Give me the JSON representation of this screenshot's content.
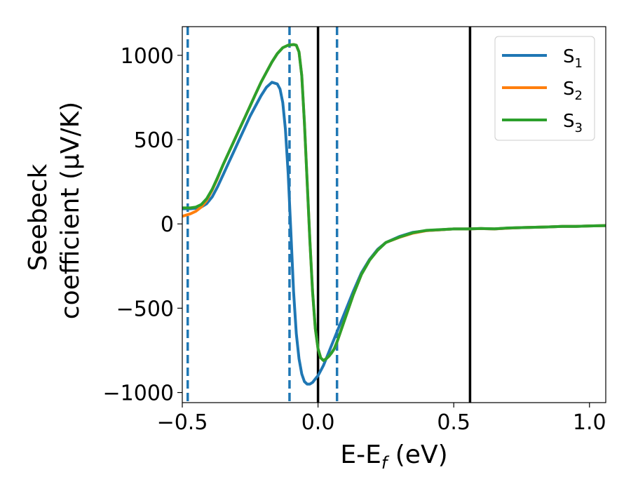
{
  "chart_data": {
    "type": "line",
    "title": "",
    "xlabel": "E-E",
    "xlabel_sub": "f",
    "xlabel_unit": " (eV)",
    "ylabel_line1": "Seebeck",
    "ylabel_line2": "coefficient  (μV/K)",
    "xlim": [
      -0.5,
      1.06
    ],
    "ylim": [
      -1060,
      1170
    ],
    "x_ticks": [
      -0.5,
      0.0,
      0.5,
      1.0
    ],
    "x_tick_labels": [
      "−0.5",
      "0.0",
      "0.5",
      "1.0"
    ],
    "y_ticks": [
      -1000,
      -500,
      0,
      500,
      1000
    ],
    "y_tick_labels": [
      "−1000",
      "−500",
      "0",
      "500",
      "1000"
    ],
    "legend_position": "top-right",
    "colors": {
      "S1": "#1f77b4",
      "S2": "#ff7f0e",
      "S3": "#2ca02c",
      "vline_solid": "#000000",
      "vline_dashed": "#1f77b4"
    },
    "vlines_solid": [
      0.0,
      0.56
    ],
    "vlines_dashed": [
      -0.48,
      -0.105,
      0.07
    ],
    "series": [
      {
        "name": "S",
        "sub": "1",
        "color_key": "S1",
        "x": [
          -0.5,
          -0.47,
          -0.45,
          -0.43,
          -0.41,
          -0.39,
          -0.37,
          -0.35,
          -0.33,
          -0.31,
          -0.29,
          -0.27,
          -0.25,
          -0.23,
          -0.21,
          -0.19,
          -0.17,
          -0.15,
          -0.14,
          -0.13,
          -0.12,
          -0.11,
          -0.1,
          -0.09,
          -0.08,
          -0.07,
          -0.06,
          -0.05,
          -0.04,
          -0.03,
          -0.02,
          -0.01,
          0.0,
          0.01,
          0.02,
          0.03,
          0.04,
          0.05,
          0.06,
          0.07,
          0.1,
          0.13,
          0.16,
          0.19,
          0.22,
          0.25,
          0.3,
          0.35,
          0.4,
          0.45,
          0.5,
          0.55,
          0.6,
          0.65,
          0.7,
          0.75,
          0.8,
          0.85,
          0.9,
          0.95,
          1.0,
          1.06
        ],
        "y": [
          90,
          90,
          93,
          100,
          120,
          160,
          220,
          290,
          360,
          430,
          500,
          570,
          640,
          700,
          760,
          810,
          840,
          830,
          800,
          720,
          560,
          300,
          -50,
          -400,
          -650,
          -800,
          -890,
          -935,
          -950,
          -950,
          -940,
          -920,
          -900,
          -870,
          -840,
          -800,
          -760,
          -720,
          -680,
          -640,
          -520,
          -400,
          -290,
          -210,
          -150,
          -110,
          -75,
          -50,
          -40,
          -35,
          -30,
          -30,
          -28,
          -30,
          -25,
          -22,
          -20,
          -18,
          -15,
          -15,
          -12,
          -10
        ]
      },
      {
        "name": "S",
        "sub": "2",
        "color_key": "S2",
        "x": [
          -0.5,
          -0.47,
          -0.45,
          -0.43,
          -0.41,
          -0.39,
          -0.37,
          -0.35,
          -0.33,
          -0.31,
          -0.29,
          -0.27,
          -0.25,
          -0.23,
          -0.21,
          -0.19,
          -0.17,
          -0.15,
          -0.13,
          -0.11,
          -0.1,
          -0.09,
          -0.08,
          -0.07,
          -0.06,
          -0.05,
          -0.04,
          -0.03,
          -0.02,
          -0.01,
          0.0,
          0.01,
          0.02,
          0.03,
          0.04,
          0.05,
          0.06,
          0.07,
          0.1,
          0.13,
          0.16,
          0.19,
          0.22,
          0.25,
          0.3,
          0.35,
          0.4,
          0.45,
          0.5,
          0.55,
          0.6,
          0.65,
          0.7,
          0.75,
          0.8,
          0.85,
          0.9,
          0.95,
          1.0,
          1.06
        ],
        "y": [
          45,
          60,
          75,
          100,
          140,
          200,
          270,
          350,
          420,
          490,
          560,
          630,
          700,
          770,
          840,
          900,
          960,
          1010,
          1045,
          1060,
          1062,
          1064,
          1060,
          1020,
          880,
          600,
          250,
          -100,
          -400,
          -620,
          -740,
          -795,
          -810,
          -800,
          -785,
          -765,
          -740,
          -700,
          -560,
          -420,
          -300,
          -215,
          -155,
          -110,
          -80,
          -55,
          -40,
          -35,
          -30,
          -30,
          -28,
          -30,
          -25,
          -22,
          -20,
          -18,
          -15,
          -15,
          -12,
          -10
        ]
      },
      {
        "name": "S",
        "sub": "3",
        "color_key": "S3",
        "x": [
          -0.5,
          -0.47,
          -0.45,
          -0.43,
          -0.41,
          -0.39,
          -0.37,
          -0.35,
          -0.33,
          -0.31,
          -0.29,
          -0.27,
          -0.25,
          -0.23,
          -0.21,
          -0.19,
          -0.17,
          -0.15,
          -0.13,
          -0.11,
          -0.1,
          -0.09,
          -0.08,
          -0.07,
          -0.06,
          -0.05,
          -0.04,
          -0.03,
          -0.02,
          -0.01,
          0.0,
          0.01,
          0.02,
          0.03,
          0.04,
          0.05,
          0.06,
          0.07,
          0.1,
          0.13,
          0.16,
          0.19,
          0.22,
          0.25,
          0.3,
          0.35,
          0.4,
          0.45,
          0.5,
          0.55,
          0.6,
          0.65,
          0.7,
          0.75,
          0.8,
          0.85,
          0.9,
          0.95,
          1.0,
          1.06
        ],
        "y": [
          95,
          95,
          100,
          115,
          150,
          205,
          275,
          350,
          420,
          490,
          560,
          630,
          700,
          770,
          840,
          900,
          960,
          1010,
          1045,
          1060,
          1062,
          1064,
          1060,
          1020,
          880,
          600,
          250,
          -100,
          -400,
          -620,
          -740,
          -795,
          -810,
          -800,
          -785,
          -765,
          -740,
          -700,
          -560,
          -420,
          -300,
          -215,
          -155,
          -110,
          -78,
          -52,
          -38,
          -34,
          -30,
          -30,
          -27,
          -29,
          -24,
          -22,
          -20,
          -18,
          -15,
          -15,
          -12,
          -10
        ]
      }
    ]
  }
}
